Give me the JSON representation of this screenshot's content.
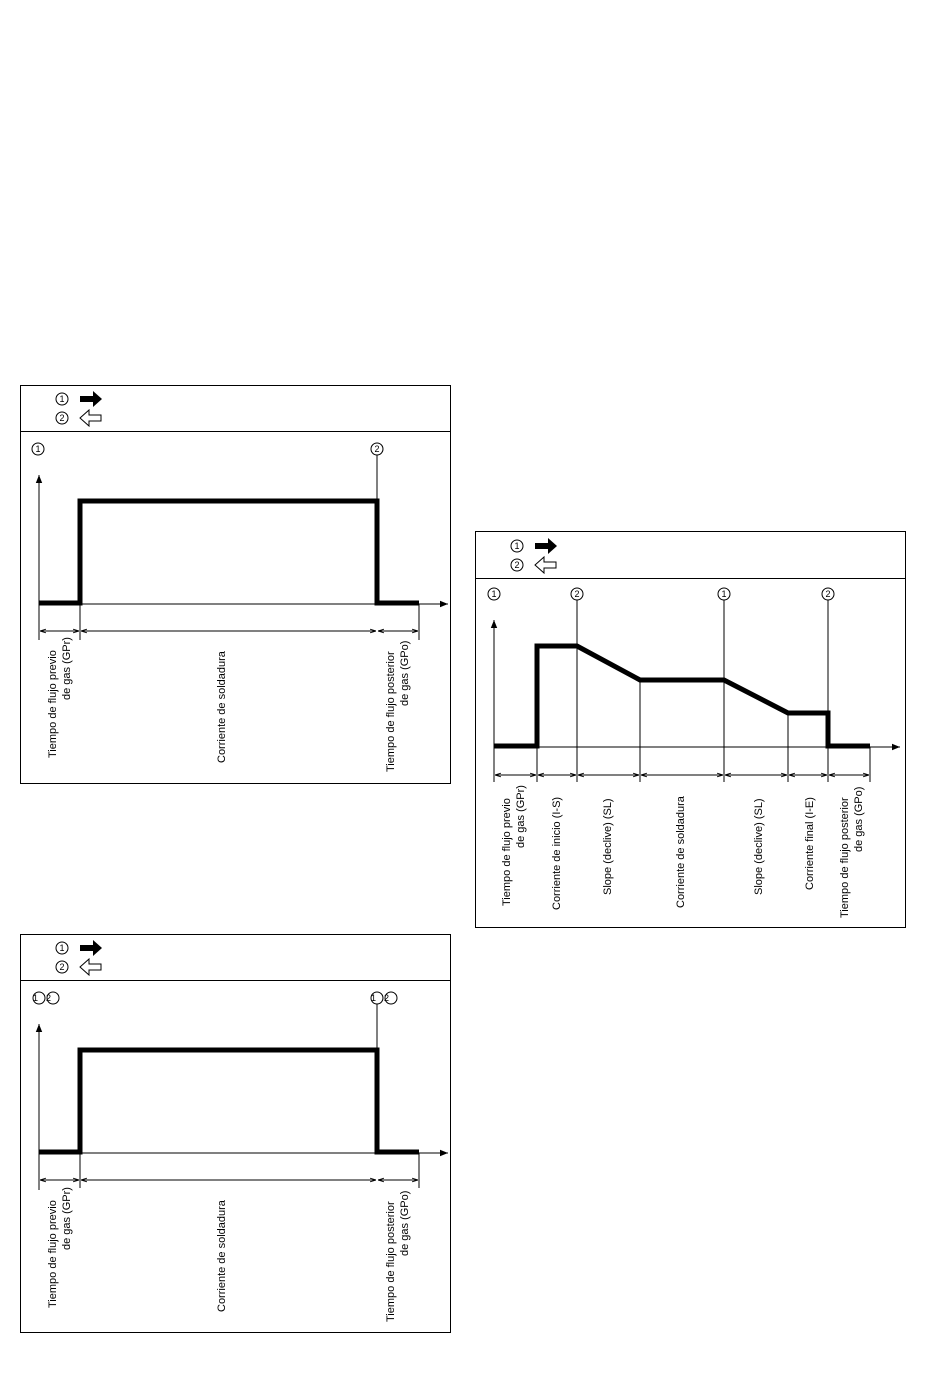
{
  "legend": {
    "marker_1": "1",
    "marker_2": "2",
    "arrow_1_icon": "solid-right-arrow-icon",
    "arrow_2_icon": "outline-left-arrow-icon"
  },
  "diagram_a": {
    "top_markers": [
      "1",
      "2"
    ],
    "segments": [
      [
        "Tiempo de flujo previo",
        "de gas (GPr)"
      ],
      [
        "Corriente de soldadura"
      ],
      [
        "Tiempo de flujo posterior",
        "de gas (GPo)"
      ]
    ]
  },
  "diagram_b": {
    "top_markers": [
      "1",
      "2",
      "1",
      "2"
    ],
    "segments": [
      [
        "Tiempo de flujo previo",
        "de gas (GPr)"
      ],
      [
        "Corriente de inicio (I-S)"
      ],
      [
        "Slope (declive)  (SL)"
      ],
      [
        "Corriente de soldadura"
      ],
      [
        "Slope (declive)  (SL)"
      ],
      [
        "Corriente final (I-E)"
      ],
      [
        "Tiempo de flujo posterior",
        "de gas (GPo)"
      ]
    ]
  },
  "diagram_c": {
    "top_markers": [
      "12",
      "12"
    ],
    "segments": [
      [
        "Tiempo de flujo previo",
        "de gas (GPr)"
      ],
      [
        "Corriente de soldadura"
      ],
      [
        "Tiempo de flujo posterior",
        "de gas (GPo)"
      ]
    ]
  }
}
